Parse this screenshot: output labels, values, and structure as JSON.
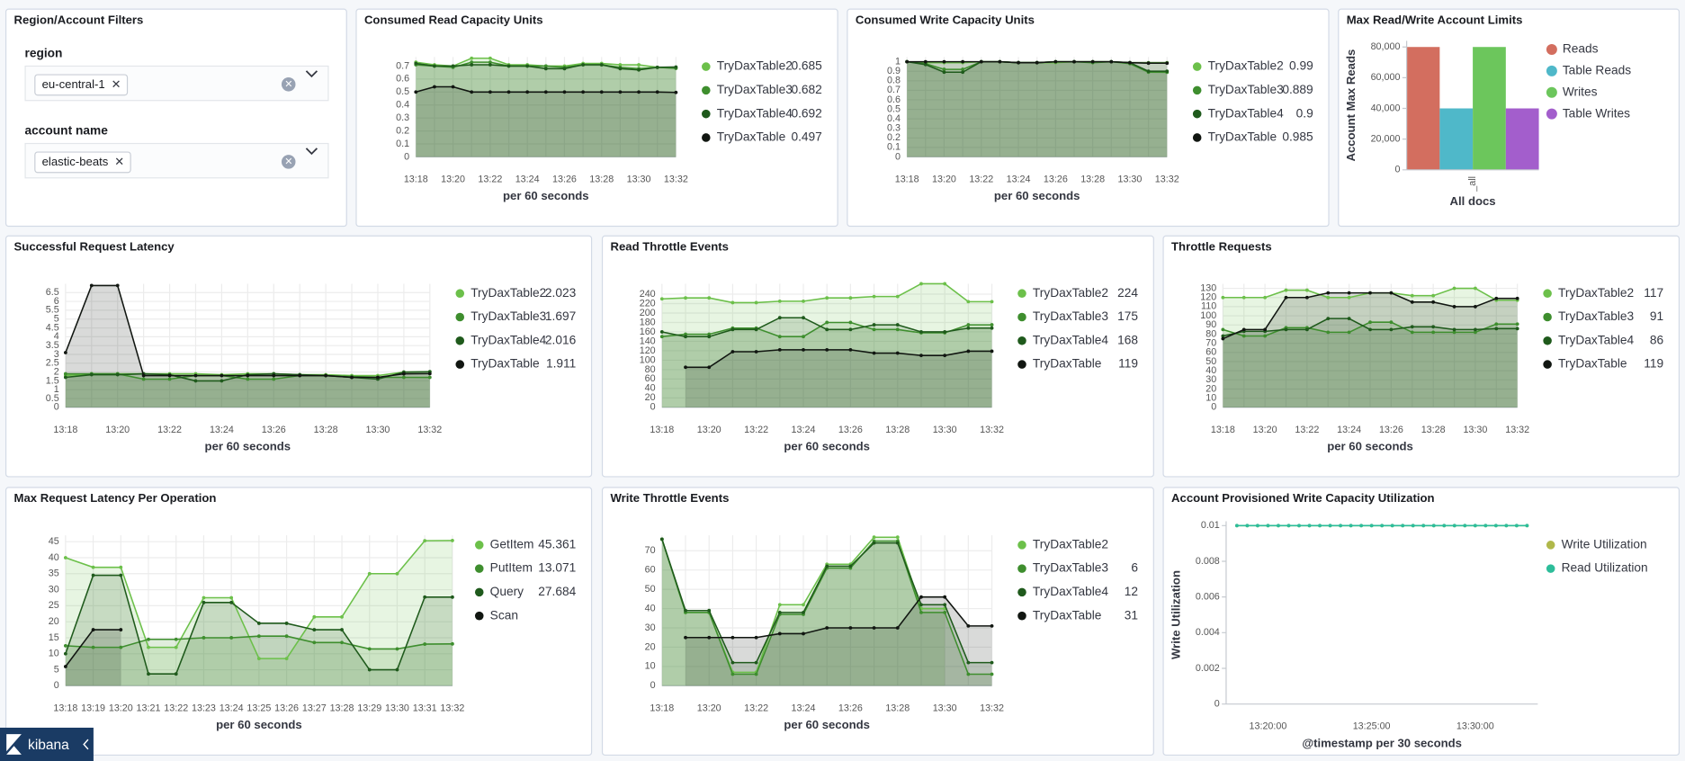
{
  "filters": {
    "title": "Region/Account Filters",
    "controls": [
      {
        "label": "region",
        "value": "eu-central-1"
      },
      {
        "label": "account name",
        "value": "elastic-beats"
      }
    ]
  },
  "footer": {
    "brand": "kibana"
  },
  "chart_data": [
    {
      "type": "line",
      "title": "Consumed Read Capacity Units",
      "x_label": "per 60 seconds",
      "grid": true,
      "area": true,
      "legend_values": true,
      "categories": [
        "13:18",
        null,
        "13:20",
        null,
        "13:22",
        null,
        "13:24",
        null,
        "13:26",
        null,
        "13:28",
        null,
        "13:30",
        null,
        "13:32"
      ],
      "ylim": [
        0,
        0.77
      ],
      "yticks": [
        0,
        0.1,
        0.2,
        0.3,
        0.4,
        0.5,
        0.6,
        0.7
      ],
      "series": [
        {
          "name": "TryDaxTable2",
          "color": "#6cc04a",
          "values": [
            0.73,
            0.71,
            0.7,
            0.76,
            0.76,
            0.71,
            0.71,
            0.7,
            0.7,
            0.72,
            0.72,
            0.71,
            0.71,
            0.69,
            0.685
          ]
        },
        {
          "name": "TryDaxTable3",
          "color": "#3e8e2e",
          "values": [
            0.71,
            0.7,
            0.69,
            0.73,
            0.73,
            0.7,
            0.7,
            0.7,
            0.69,
            0.71,
            0.71,
            0.69,
            0.68,
            0.69,
            0.682
          ]
        },
        {
          "name": "TryDaxTable4",
          "color": "#1f5a1c",
          "values": [
            0.72,
            0.7,
            0.7,
            0.71,
            0.71,
            0.7,
            0.7,
            0.68,
            0.68,
            0.71,
            0.71,
            0.68,
            0.67,
            0.69,
            0.692
          ]
        },
        {
          "name": "TryDaxTable",
          "color": "#111611",
          "values": [
            0.5,
            0.54,
            0.54,
            0.5,
            0.5,
            0.5,
            0.5,
            0.5,
            0.5,
            0.5,
            0.5,
            0.5,
            0.5,
            0.5,
            0.497
          ]
        }
      ]
    },
    {
      "type": "line",
      "title": "Consumed Write Capacity Units",
      "x_label": "per 60 seconds",
      "grid": true,
      "area": true,
      "legend_values": true,
      "categories": [
        "13:18",
        null,
        "13:20",
        null,
        "13:22",
        null,
        "13:24",
        null,
        "13:26",
        null,
        "13:28",
        null,
        "13:30",
        null,
        "13:32"
      ],
      "ylim": [
        0,
        1.05
      ],
      "yticks": [
        0,
        0.1,
        0.2,
        0.3,
        0.4,
        0.5,
        0.6,
        0.7,
        0.8,
        0.9,
        1
      ],
      "series": [
        {
          "name": "TryDaxTable2",
          "color": "#6cc04a",
          "values": [
            1,
            0.99,
            0.99,
            0.99,
            1,
            1,
            0.99,
            0.99,
            0.99,
            1,
            1,
            1,
            0.99,
            0.99,
            0.99
          ]
        },
        {
          "name": "TryDaxTable3",
          "color": "#3e8e2e",
          "values": [
            1,
            0.98,
            0.92,
            0.92,
            1,
            1,
            0.99,
            0.99,
            1,
            1,
            0.99,
            1,
            0.98,
            0.89,
            0.889
          ]
        },
        {
          "name": "TryDaxTable4",
          "color": "#1f5a1c",
          "values": [
            1,
            0.97,
            0.89,
            0.89,
            1,
            1,
            0.99,
            0.99,
            1,
            1,
            1,
            1,
            0.99,
            0.9,
            0.9
          ]
        },
        {
          "name": "TryDaxTable",
          "color": "#111611",
          "values": [
            1,
            1,
            1,
            1,
            1,
            1,
            0.99,
            0.99,
            1,
            1,
            1,
            1,
            0.99,
            0.985,
            0.985
          ]
        }
      ]
    },
    {
      "type": "bar",
      "title": "Max Read/Write Account Limits",
      "x_label": "All docs",
      "y_label": "Account Max Reads",
      "categories": [
        "_all"
      ],
      "ylim": [
        0,
        84000
      ],
      "yticks": [
        0,
        {
          "value": 20000,
          "label": "20,000"
        },
        {
          "value": 40000,
          "label": "40,000"
        },
        {
          "value": 60000,
          "label": "60,000"
        },
        {
          "value": 80000,
          "label": "80,000"
        }
      ],
      "series": [
        {
          "name": "Reads",
          "color": "#d36e5f",
          "values": [
            80000
          ]
        },
        {
          "name": "Table Reads",
          "color": "#4fb8c9",
          "values": [
            40000
          ]
        },
        {
          "name": "Writes",
          "color": "#6cc65c",
          "values": [
            80000
          ]
        },
        {
          "name": "Table Writes",
          "color": "#a35ecc",
          "values": [
            40000
          ]
        }
      ]
    },
    {
      "type": "line",
      "title": "Successful Request Latency",
      "x_label": "per 60 seconds",
      "grid": true,
      "area": true,
      "legend_values": true,
      "categories": [
        "13:18",
        null,
        "13:20",
        null,
        "13:22",
        null,
        "13:24",
        null,
        "13:26",
        null,
        "13:28",
        null,
        "13:30",
        null,
        "13:32"
      ],
      "ylim": [
        0,
        7
      ],
      "yticks": [
        0,
        0.5,
        1,
        1.5,
        2,
        2.5,
        3,
        3.5,
        4,
        4.5,
        5,
        5.5,
        6,
        6.5
      ],
      "series": [
        {
          "name": "TryDaxTable2",
          "color": "#6cc04a",
          "values": [
            1.8,
            1.9,
            1.9,
            1.9,
            1.9,
            1.9,
            1.85,
            1.9,
            1.9,
            1.85,
            1.85,
            1.8,
            1.8,
            2.0,
            2.023
          ]
        },
        {
          "name": "TryDaxTable3",
          "color": "#3e8e2e",
          "values": [
            1.9,
            1.9,
            1.9,
            1.6,
            1.6,
            1.8,
            1.8,
            1.6,
            1.6,
            1.8,
            1.8,
            1.75,
            1.7,
            1.7,
            1.697
          ]
        },
        {
          "name": "TryDaxTable4",
          "color": "#1f5a1c",
          "values": [
            1.7,
            1.85,
            1.85,
            1.9,
            1.85,
            1.5,
            1.5,
            1.85,
            1.9,
            1.85,
            1.8,
            1.7,
            1.6,
            2.0,
            2.016
          ]
        },
        {
          "name": "TryDaxTable",
          "color": "#111611",
          "values": [
            3.1,
            6.9,
            6.9,
            1.8,
            1.8,
            1.8,
            1.8,
            1.8,
            1.8,
            1.8,
            1.8,
            1.7,
            1.7,
            1.9,
            1.911
          ]
        }
      ]
    },
    {
      "type": "line",
      "title": "Read Throttle Events",
      "x_label": "per 60 seconds",
      "grid": true,
      "area": true,
      "legend_values": true,
      "categories": [
        "13:18",
        null,
        "13:20",
        null,
        "13:22",
        null,
        "13:24",
        null,
        "13:26",
        null,
        "13:28",
        null,
        "13:30",
        null,
        "13:32"
      ],
      "ylim": [
        0,
        262
      ],
      "yticks": [
        0,
        20,
        40,
        60,
        80,
        100,
        120,
        140,
        160,
        180,
        200,
        220,
        240
      ],
      "series": [
        {
          "name": "TryDaxTable2",
          "color": "#6cc04a",
          "values": [
            230,
            232,
            232,
            222,
            222,
            225,
            225,
            232,
            232,
            235,
            235,
            262,
            262,
            224,
            224
          ]
        },
        {
          "name": "TryDaxTable3",
          "color": "#3e8e2e",
          "values": [
            150,
            155,
            155,
            168,
            168,
            150,
            150,
            180,
            180,
            165,
            165,
            158,
            158,
            175,
            175
          ]
        },
        {
          "name": "TryDaxTable4",
          "color": "#1f5a1c",
          "values": [
            160,
            150,
            150,
            165,
            165,
            190,
            190,
            165,
            165,
            175,
            175,
            160,
            160,
            168,
            168
          ]
        },
        {
          "name": "TryDaxTable",
          "color": "#111611",
          "values": [
            null,
            85,
            85,
            118,
            118,
            122,
            122,
            122,
            122,
            115,
            115,
            110,
            110,
            119,
            119
          ]
        }
      ]
    },
    {
      "type": "line",
      "title": "Throttle Requests",
      "x_label": "per 60 seconds",
      "grid": true,
      "area": true,
      "legend_values": true,
      "categories": [
        "13:18",
        null,
        "13:20",
        null,
        "13:22",
        null,
        "13:24",
        null,
        "13:26",
        null,
        "13:28",
        null,
        "13:30",
        null,
        "13:32"
      ],
      "ylim": [
        0,
        135
      ],
      "yticks": [
        0,
        10,
        20,
        30,
        40,
        50,
        60,
        70,
        80,
        90,
        100,
        110,
        120,
        130
      ],
      "series": [
        {
          "name": "TryDaxTable2",
          "color": "#6cc04a",
          "values": [
            120,
            120,
            120,
            128,
            128,
            120,
            120,
            125,
            125,
            122,
            122,
            130,
            130,
            117,
            117
          ]
        },
        {
          "name": "TryDaxTable3",
          "color": "#3e8e2e",
          "values": [
            85,
            78,
            78,
            87,
            87,
            82,
            82,
            93,
            93,
            82,
            82,
            82,
            82,
            91,
            91
          ]
        },
        {
          "name": "TryDaxTable4",
          "color": "#1f5a1c",
          "values": [
            78,
            83,
            83,
            85,
            85,
            97,
            97,
            85,
            85,
            88,
            88,
            85,
            85,
            86,
            86
          ]
        },
        {
          "name": "TryDaxTable",
          "color": "#111611",
          "values": [
            75,
            85,
            85,
            120,
            120,
            125,
            125,
            125,
            125,
            115,
            115,
            110,
            110,
            119,
            119
          ]
        }
      ]
    },
    {
      "type": "line",
      "title": "Max Request Latency Per Operation",
      "x_label": "per 60 seconds",
      "grid": true,
      "area": true,
      "legend_values": true,
      "categories": [
        "13:18",
        "13:19",
        "13:20",
        "13:21",
        "13:22",
        "13:23",
        "13:24",
        "13:25",
        "13:26",
        "13:27",
        "13:28",
        "13:29",
        "13:30",
        "13:31",
        "13:32"
      ],
      "ylim": [
        0,
        47
      ],
      "yticks": [
        0,
        5,
        10,
        15,
        20,
        25,
        30,
        35,
        40,
        45
      ],
      "series": [
        {
          "name": "GetItem",
          "color": "#6cc04a",
          "values": [
            40,
            37,
            37,
            12,
            12,
            27.5,
            27.5,
            8.5,
            8.5,
            21.5,
            21.5,
            35,
            35,
            45.3,
            45.361
          ]
        },
        {
          "name": "PutItem",
          "color": "#3e8e2e",
          "values": [
            12.5,
            12,
            12,
            14.5,
            14.5,
            15,
            15,
            15.5,
            15.5,
            13.5,
            13.5,
            11.5,
            11.5,
            13,
            13.071
          ]
        },
        {
          "name": "Query",
          "color": "#1f5a1c",
          "values": [
            10,
            34.5,
            34.5,
            3.7,
            3.7,
            26,
            26,
            19.5,
            19.5,
            17.5,
            17.5,
            5,
            5,
            27.7,
            27.684
          ]
        },
        {
          "name": "Scan",
          "color": "#111611",
          "values": [
            6,
            17.5,
            17.5,
            null,
            null,
            null,
            null,
            null,
            null,
            null,
            null,
            null,
            null,
            null,
            null
          ]
        }
      ]
    },
    {
      "type": "line",
      "title": "Write Throttle Events",
      "x_label": "per 60 seconds",
      "grid": true,
      "area": true,
      "legend_values": true,
      "categories": [
        "13:18",
        null,
        "13:20",
        null,
        "13:22",
        null,
        "13:24",
        null,
        "13:26",
        null,
        "13:28",
        null,
        "13:30",
        null,
        "13:32"
      ],
      "ylim": [
        0,
        78
      ],
      "yticks": [
        0,
        10,
        20,
        30,
        40,
        50,
        60,
        70
      ],
      "series": [
        {
          "name": "TryDaxTable2",
          "color": "#6cc04a",
          "values": [
            76,
            38,
            38,
            7,
            7,
            42,
            42,
            63,
            63,
            77,
            77,
            40,
            40,
            null,
            null
          ]
        },
        {
          "name": "TryDaxTable3",
          "color": "#3e8e2e",
          "values": [
            76,
            38,
            38,
            6,
            6,
            37,
            37,
            61,
            61,
            75,
            75,
            38,
            38,
            6,
            6
          ]
        },
        {
          "name": "TryDaxTable4",
          "color": "#1f5a1c",
          "values": [
            76,
            39,
            39,
            12,
            12,
            38,
            38,
            62,
            62,
            74,
            74,
            42,
            42,
            12,
            12
          ]
        },
        {
          "name": "TryDaxTable",
          "color": "#111611",
          "values": [
            null,
            25,
            25,
            25,
            25,
            27,
            27,
            30,
            30,
            30,
            30,
            46,
            46,
            31,
            31
          ]
        }
      ]
    },
    {
      "type": "line",
      "title": "Account Provisioned Write Capacity Utilization",
      "x_label": "@timestamp per 30 seconds",
      "y_label": "Write Utilization",
      "grid": false,
      "area": false,
      "legend_values": false,
      "categories": [
        null,
        null,
        null,
        "13:20:00",
        null,
        null,
        null,
        null,
        null,
        null,
        null,
        null,
        null,
        "13:25:00",
        null,
        null,
        null,
        null,
        null,
        null,
        null,
        null,
        null,
        "13:30:00",
        null,
        null,
        null,
        null,
        null
      ],
      "ylim": [
        0,
        0.01
      ],
      "yticks": [
        0,
        0.002,
        0.004,
        0.006,
        0.008,
        0.01
      ],
      "series": [
        {
          "name": "Write Utilization",
          "color": "#b0b84a",
          "values": [
            0.01,
            0.01,
            0.01,
            0.01,
            0.01,
            0.01,
            0.01,
            0.01,
            0.01,
            0.01,
            0.01,
            0.01,
            0.01,
            0.01,
            0.01,
            0.01,
            0.01,
            0.01,
            0.01,
            0.01,
            0.01,
            0.01,
            0.01,
            0.01,
            0.01,
            0.01,
            0.01,
            0.01,
            0.01
          ]
        },
        {
          "name": "Read Utilization",
          "color": "#2dbd9a",
          "values": [
            0.01,
            0.01,
            0.01,
            0.01,
            0.01,
            0.01,
            0.01,
            0.01,
            0.01,
            0.01,
            0.01,
            0.01,
            0.01,
            0.01,
            0.01,
            0.01,
            0.01,
            0.01,
            0.01,
            0.01,
            0.01,
            0.01,
            0.01,
            0.01,
            0.01,
            0.01,
            0.01,
            0.01,
            0.01
          ]
        }
      ]
    }
  ]
}
